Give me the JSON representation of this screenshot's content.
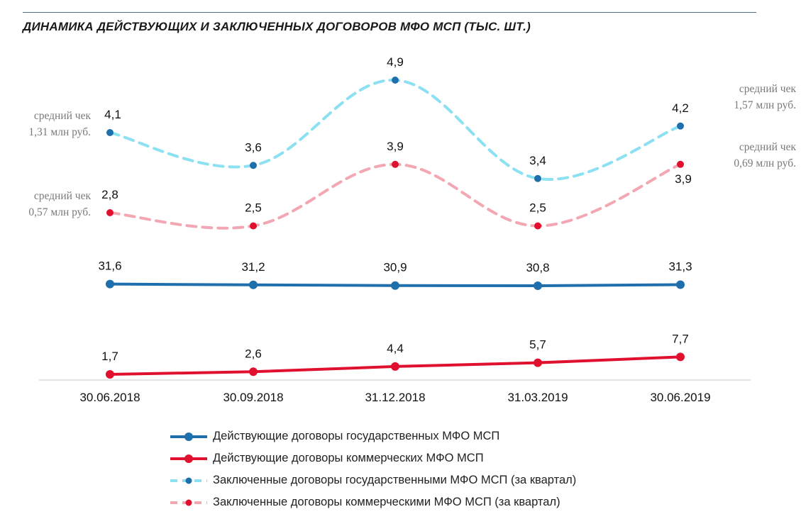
{
  "title": "ДИНАМИКА ДЕЙСТВУЮЩИХ И ЗАКЛЮЧЕННЫХ ДОГОВОРОВ МФО МСП (ТЫС. ШТ.)",
  "chart_data": {
    "type": "line",
    "title": "ДИНАМИКА ДЕЙСТВУЮЩИХ И ЗАКЛЮЧЕННЫХ ДОГОВОРОВ МФО МСП (ТЫС. ШТ.)",
    "categories": [
      "30.06.2018",
      "30.09.2018",
      "31.12.2018",
      "31.03.2019",
      "30.06.2019"
    ],
    "series": [
      {
        "name": "Действующие договоры государственных МФО МСП",
        "values": [
          31.6,
          31.2,
          30.9,
          30.8,
          31.3
        ],
        "labels": [
          "31,6",
          "31,2",
          "30,9",
          "30,8",
          "31,3"
        ],
        "color": "#1f6fad",
        "style": "solid"
      },
      {
        "name": "Действующие договоры коммерческих МФО МСП",
        "values": [
          1.7,
          2.6,
          4.4,
          5.7,
          7.7
        ],
        "labels": [
          "1,7",
          "2,6",
          "4,4",
          "5,7",
          "7,7"
        ],
        "color": "#e0102f",
        "style": "solid"
      },
      {
        "name": "Заключенные договоры государственными МФО МСП (за квартал)",
        "values": [
          4.1,
          3.6,
          4.9,
          3.4,
          4.2
        ],
        "labels": [
          "4,1",
          "3,6",
          "4,9",
          "3,4",
          "4,2"
        ],
        "color": "#8be0f2",
        "marker_color": "#1f6fad",
        "style": "dashed"
      },
      {
        "name": "Заключенные договоры коммерческими МФО МСП (за квартал)",
        "values": [
          2.8,
          2.5,
          3.9,
          2.5,
          3.9
        ],
        "labels": [
          "2,8",
          "2,5",
          "3,9",
          "2,5",
          "3,9"
        ],
        "color": "#f2a7b2",
        "marker_color": "#e0102f",
        "style": "dashed"
      }
    ],
    "annotations": [
      {
        "line1": "средний чек",
        "line2": "1,31 млн руб."
      },
      {
        "line1": "средний чек",
        "line2": "0,57 млн руб."
      },
      {
        "line1": "средний чек",
        "line2": "1,57 млн руб."
      },
      {
        "line1": "средний чек",
        "line2": "0,69 млн руб."
      }
    ],
    "legend_position": "bottom",
    "grid": false
  }
}
